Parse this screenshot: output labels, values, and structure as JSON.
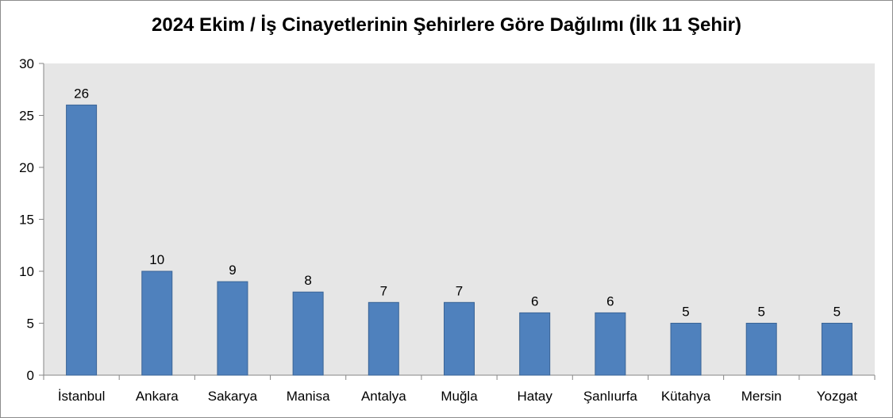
{
  "chart_data": {
    "type": "bar",
    "title": "2024 Ekim / İş Cinayetlerinin Şehirlere Göre Dağılımı (İlk 11 Şehir)",
    "xlabel": "",
    "ylabel": "",
    "categories": [
      "İstanbul",
      "Ankara",
      "Sakarya",
      "Manisa",
      "Antalya",
      "Muğla",
      "Hatay",
      "Şanlıurfa",
      "Kütahya",
      "Mersin",
      "Yozgat"
    ],
    "values": [
      26,
      10,
      9,
      8,
      7,
      7,
      6,
      6,
      5,
      5,
      5
    ],
    "ylim": [
      0,
      30
    ],
    "yticks": [
      0,
      5,
      10,
      15,
      20,
      25,
      30
    ],
    "grid": false,
    "legend": "none",
    "colors": {
      "bar": "#4f81bd",
      "bar_border": "#3a6496",
      "plot_background": "#e6e6e6",
      "axis": "#868686"
    }
  }
}
